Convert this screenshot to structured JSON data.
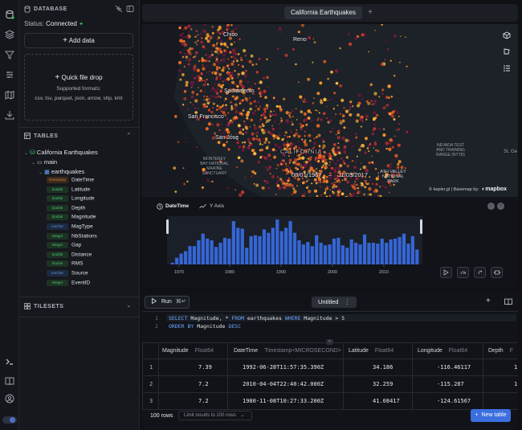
{
  "sidebar": {
    "database_header": "DATABASE",
    "status_label": "Status:",
    "status_value": "Connected",
    "add_data_label": "Add data",
    "quick_drop_label": "Quick file drop",
    "supported_formats_label": "Supported formats:",
    "formats": "csv, tsv, parquet, json, arrow, shp, kml",
    "tables_header": "TABLES",
    "tree": {
      "table_name": "California Earthquakes",
      "schema": "main",
      "dataset": "earthquakes"
    },
    "columns": [
      {
        "type": "timestamp",
        "name": "DateTime",
        "color": "#c97a3a",
        "bg": "#3a2a1c"
      },
      {
        "type": "double",
        "name": "Latitude",
        "color": "#4fbf6a",
        "bg": "#1c3324"
      },
      {
        "type": "double",
        "name": "Longitude",
        "color": "#4fbf6a",
        "bg": "#1c3324"
      },
      {
        "type": "double",
        "name": "Depth",
        "color": "#4fbf6a",
        "bg": "#1c3324"
      },
      {
        "type": "double",
        "name": "Magnitude",
        "color": "#4fbf6a",
        "bg": "#1c3324"
      },
      {
        "type": "varchar",
        "name": "MagType",
        "color": "#5b8fd6",
        "bg": "#1c2a40"
      },
      {
        "type": "integer",
        "name": "NbStations",
        "color": "#4fbf6a",
        "bg": "#1c3324"
      },
      {
        "type": "integer",
        "name": "Gap",
        "color": "#4fbf6a",
        "bg": "#1c3324"
      },
      {
        "type": "double",
        "name": "Distance",
        "color": "#4fbf6a",
        "bg": "#1c3324"
      },
      {
        "type": "double",
        "name": "RMS",
        "color": "#4fbf6a",
        "bg": "#1c3324"
      },
      {
        "type": "varchar",
        "name": "Source",
        "color": "#5b8fd6",
        "bg": "#1c2a40"
      },
      {
        "type": "integer",
        "name": "EventID",
        "color": "#4fbf6a",
        "bg": "#1c3324"
      }
    ],
    "tilesets_header": "TILESETS"
  },
  "top_tab": {
    "title": "California Earthquakes",
    "add": "+"
  },
  "map": {
    "labels": {
      "chico": "Chico",
      "reno": "Reno",
      "sacramento": "Sacramento",
      "san_francisco": "San Francisco",
      "san_jose": "San Jose",
      "california": "CALIFORNIA",
      "st_ge": "St. Ge",
      "monterey": "MONTEREY\nBAY NATIONAL\nMARINE\nSANCTUARY",
      "nevada": "NEVADA TEST\nAND TRAINING\nRANGE (NTTR)",
      "death_valley": "ATH VALLEY\nNATIONAL\nPARK"
    },
    "date_start": "08/01/1967",
    "date_sep": "–",
    "date_end": "11/03/2017",
    "attribution": "© kepler.gl | Basemap by:",
    "mapbox": "mapbox"
  },
  "timeline": {
    "x_field": "DateTime",
    "y_field": "Y Axis",
    "year_ticks": [
      "1970",
      "1980",
      "1990",
      "2000",
      "2010"
    ]
  },
  "chart_data": {
    "type": "bar",
    "title": "",
    "xlabel": "",
    "ylabel": "",
    "x_ticks": [
      "1970",
      "1980",
      "1990",
      "2000",
      "2010"
    ],
    "values": [
      2,
      8,
      13,
      16,
      22,
      22,
      29,
      37,
      31,
      29,
      21,
      26,
      32,
      31,
      52,
      44,
      43,
      20,
      34,
      35,
      34,
      42,
      38,
      44,
      54,
      40,
      44,
      52,
      38,
      29,
      24,
      27,
      22,
      35,
      26,
      23,
      24,
      31,
      32,
      23,
      20,
      30,
      26,
      24,
      36,
      26,
      26,
      25,
      31,
      26,
      30,
      31,
      33,
      37,
      25,
      34,
      18
    ]
  },
  "editor": {
    "run_label": "Run",
    "run_shortcut": "⌘↵",
    "tab_title": "Untitled",
    "tab_menu": "⋮",
    "sql_line_numbers": [
      "1",
      "2"
    ],
    "sql": {
      "l1_select": "SELECT",
      "l1_cols": " Magnitude, * ",
      "l1_from": "FROM",
      "l1_tbl": " earthquakes ",
      "l1_where": "WHERE",
      "l1_cond": " Magnitude > 5",
      "l2_order": "ORDER BY",
      "l2_col": " Magnitude ",
      "l2_desc": "DESC"
    },
    "columns": [
      {
        "name": "Magnitude",
        "type": "Float64"
      },
      {
        "name": "DateTime",
        "type": "Timestamp<MICROSECOND>"
      },
      {
        "name": "Latitude",
        "type": "Float64"
      },
      {
        "name": "Longitude",
        "type": "Float64"
      },
      {
        "name": "Depth",
        "type": "F"
      }
    ],
    "rows": [
      {
        "n": "1",
        "mag": "7.39",
        "dt": "1992-06-28T11:57:35.390Z",
        "lat": "34.186",
        "lon": "-116.46117",
        "dep": "1"
      },
      {
        "n": "2",
        "mag": "7.2",
        "dt": "2010-04-04T22:40:42.000Z",
        "lat": "32.259",
        "lon": "-115.287",
        "dep": "1"
      },
      {
        "n": "3",
        "mag": "7.2",
        "dt": "1980-11-08T10:27:33.200Z",
        "lat": "41.08417",
        "lon": "-124.61567",
        "dep": ""
      }
    ],
    "row_count": "100 rows",
    "limit_label": "Limit results to 100 rows",
    "new_table_label": "New table"
  },
  "colors": {
    "accent": "#3b6fe0",
    "status_green": "#3fbf5f",
    "histogram_bar": "#3566d6"
  }
}
